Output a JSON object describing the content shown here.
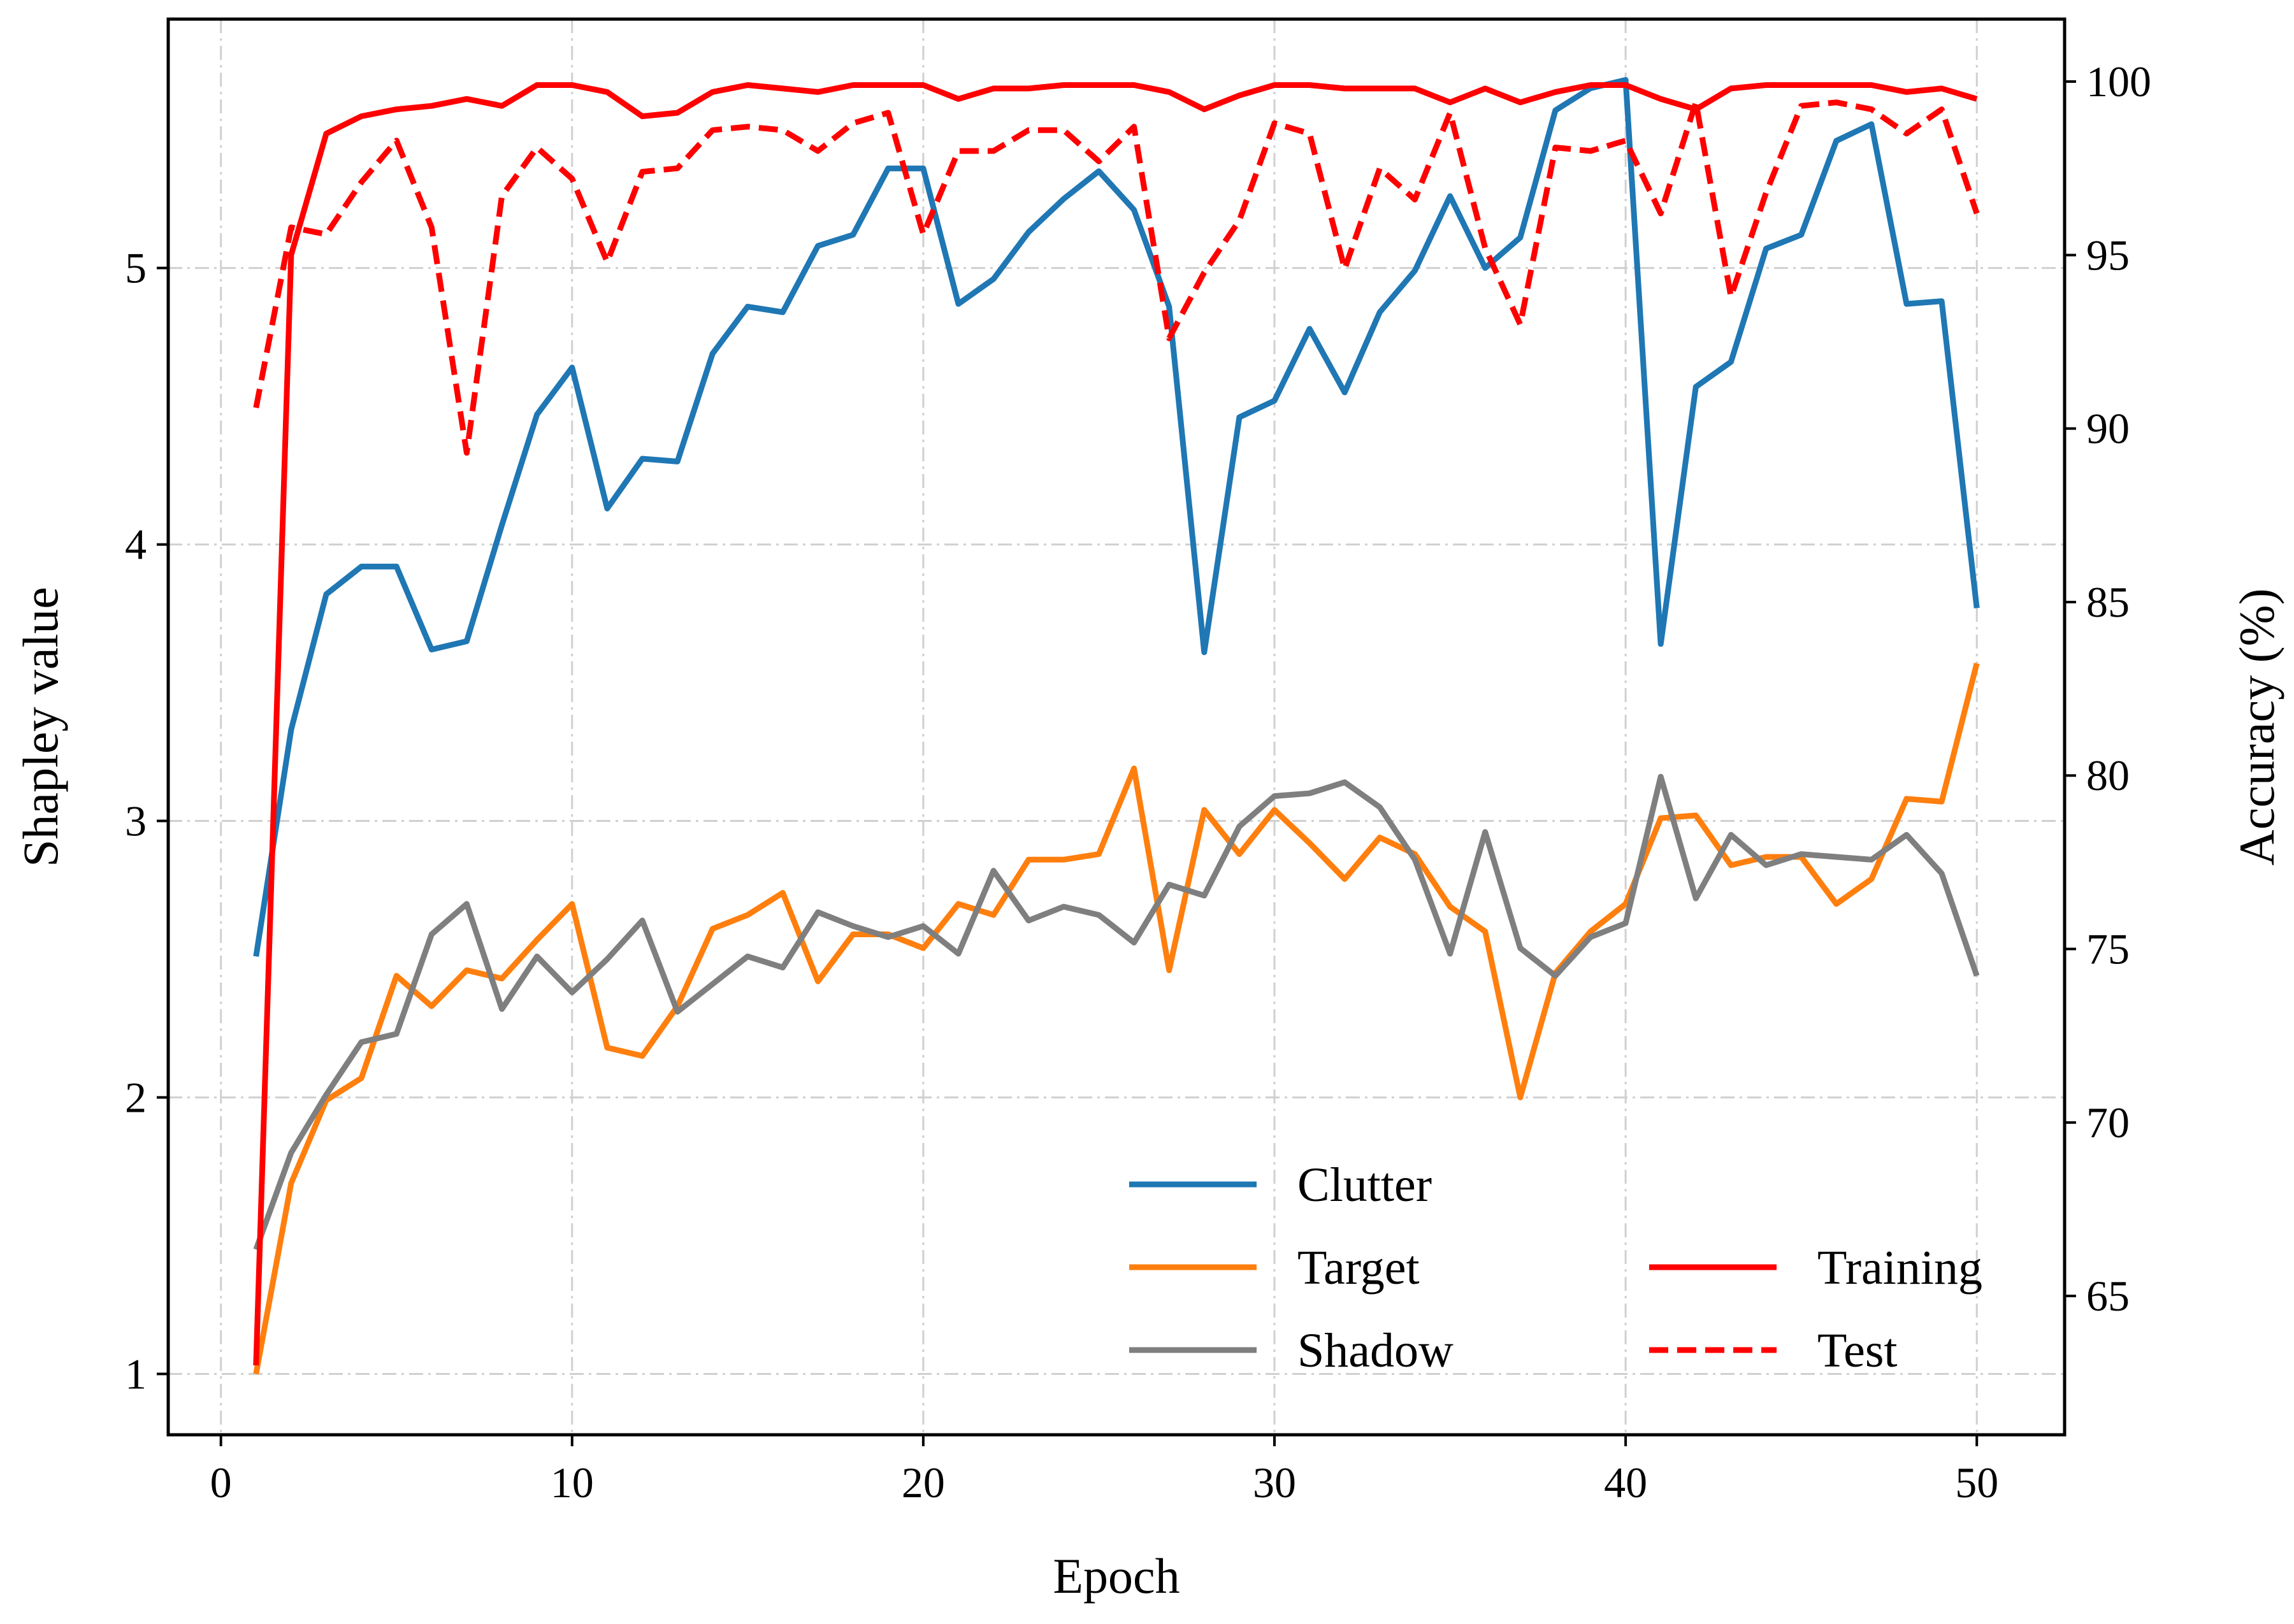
{
  "chart_data": {
    "type": "line",
    "xlabel": "Epoch",
    "ylabel": "Shapley value",
    "ylabel_right": "Accuracy (%)",
    "xlim": [
      -1.5,
      52.5
    ],
    "ylim": [
      0.78,
      5.9
    ],
    "ylim_right": [
      61.0,
      101.8
    ],
    "x_ticks": [
      0,
      10,
      20,
      30,
      40,
      50
    ],
    "y_ticks": [
      1,
      2,
      3,
      4,
      5
    ],
    "y_ticks_right": [
      65,
      70,
      75,
      80,
      85,
      90,
      95,
      100
    ],
    "grid": true,
    "legend_position": "lower-right",
    "x": [
      1,
      2,
      3,
      4,
      5,
      6,
      7,
      8,
      9,
      10,
      11,
      12,
      13,
      14,
      15,
      16,
      17,
      18,
      19,
      20,
      21,
      22,
      23,
      24,
      25,
      26,
      27,
      28,
      29,
      30,
      31,
      32,
      33,
      34,
      35,
      36,
      37,
      38,
      39,
      40,
      41,
      42,
      43,
      44,
      45,
      46,
      47,
      48,
      49,
      50
    ],
    "series": [
      {
        "name": "Clutter",
        "axis": "left",
        "color": "#1f77b4",
        "dash": "solid",
        "values": [
          2.51,
          3.33,
          3.82,
          3.92,
          3.92,
          3.62,
          3.65,
          4.07,
          4.47,
          4.64,
          4.13,
          4.31,
          4.3,
          4.69,
          4.86,
          4.84,
          5.08,
          5.12,
          5.36,
          5.36,
          4.87,
          4.96,
          5.13,
          5.25,
          5.35,
          5.21,
          4.86,
          3.61,
          4.46,
          4.52,
          4.78,
          4.55,
          4.84,
          4.99,
          5.26,
          5.0,
          5.11,
          5.57,
          5.65,
          5.68,
          3.64,
          4.57,
          4.66,
          5.07,
          5.12,
          5.46,
          5.52,
          4.87,
          4.88,
          3.77
        ]
      },
      {
        "name": "Target",
        "axis": "left",
        "color": "#ff7f0e",
        "dash": "solid",
        "values": [
          1.0,
          1.69,
          1.99,
          2.07,
          2.44,
          2.33,
          2.46,
          2.43,
          2.57,
          2.7,
          2.18,
          2.15,
          2.33,
          2.61,
          2.66,
          2.74,
          2.42,
          2.59,
          2.59,
          2.54,
          2.7,
          2.66,
          2.86,
          2.86,
          2.88,
          3.19,
          2.46,
          3.04,
          2.88,
          3.04,
          2.92,
          2.79,
          2.94,
          2.88,
          2.69,
          2.6,
          2.0,
          2.45,
          2.6,
          2.7,
          3.01,
          3.02,
          2.84,
          2.87,
          2.87,
          2.7,
          2.79,
          3.08,
          3.07,
          3.57
        ]
      },
      {
        "name": "Shadow",
        "axis": "left",
        "color": "#7f7f7f",
        "dash": "solid",
        "values": [
          1.45,
          1.8,
          2.01,
          2.2,
          2.23,
          2.59,
          2.7,
          2.32,
          2.51,
          2.38,
          2.5,
          2.64,
          2.31,
          2.41,
          2.51,
          2.47,
          2.67,
          2.62,
          2.58,
          2.62,
          2.52,
          2.82,
          2.64,
          2.69,
          2.66,
          2.56,
          2.77,
          2.73,
          2.98,
          3.09,
          3.1,
          3.14,
          3.05,
          2.86,
          2.52,
          2.96,
          2.54,
          2.44,
          2.58,
          2.63,
          3.16,
          2.72,
          2.95,
          2.84,
          2.88,
          2.87,
          2.86,
          2.95,
          2.81,
          2.44
        ]
      },
      {
        "name": "Training",
        "axis": "right",
        "color": "#ff0000",
        "dash": "solid",
        "values": [
          63.0,
          95.0,
          98.5,
          99.0,
          99.2,
          99.3,
          99.5,
          99.3,
          99.9,
          99.9,
          99.7,
          99.0,
          99.1,
          99.7,
          99.9,
          99.8,
          99.7,
          99.9,
          99.9,
          99.9,
          99.5,
          99.8,
          99.8,
          99.9,
          99.9,
          99.9,
          99.7,
          99.2,
          99.6,
          99.9,
          99.9,
          99.8,
          99.8,
          99.8,
          99.4,
          99.8,
          99.4,
          99.7,
          99.9,
          99.9,
          99.5,
          99.2,
          99.8,
          99.9,
          99.9,
          99.9,
          99.9,
          99.7,
          99.8,
          99.5
        ]
      },
      {
        "name": "Test",
        "axis": "right",
        "color": "#ff0000",
        "dash": "dashed",
        "values": [
          90.6,
          95.8,
          95.6,
          97.1,
          98.3,
          95.8,
          89.3,
          96.7,
          98.1,
          97.2,
          94.8,
          97.4,
          97.5,
          98.6,
          98.7,
          98.6,
          98.0,
          98.8,
          99.1,
          95.6,
          98.0,
          98.0,
          98.6,
          98.6,
          97.7,
          98.7,
          92.6,
          94.5,
          96.0,
          98.8,
          98.5,
          94.6,
          97.5,
          96.6,
          99.1,
          95.2,
          93.0,
          98.1,
          98.0,
          98.3,
          96.2,
          99.4,
          93.8,
          96.8,
          99.3,
          99.4,
          99.2,
          98.5,
          99.2,
          96.2
        ]
      }
    ],
    "legend_col1": [
      "Clutter",
      "Target",
      "Shadow"
    ],
    "legend_col2": [
      "Training",
      "Test"
    ]
  }
}
